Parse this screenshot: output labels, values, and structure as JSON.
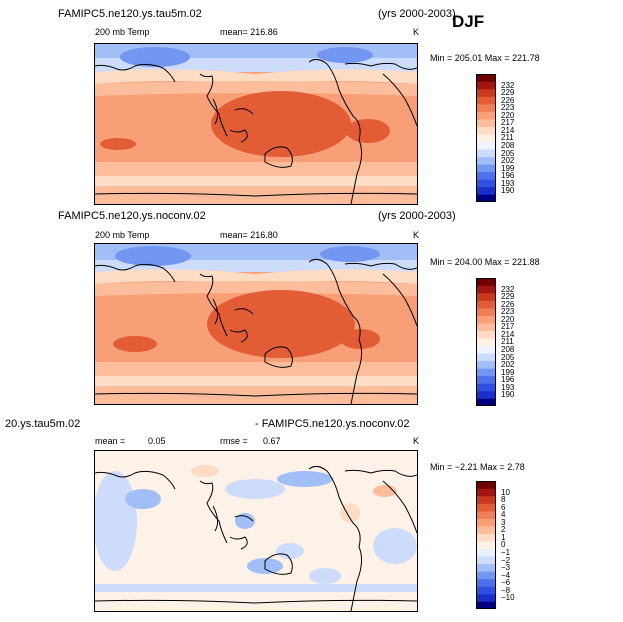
{
  "header": {
    "djf_label": "DJF"
  },
  "palette_main": [
    "#000080",
    "#1a2fc8",
    "#2f50e0",
    "#4f70ea",
    "#7396f0",
    "#a2bef7",
    "#cddcfb",
    "#eef3fd",
    "#fdf0e4",
    "#fddcc6",
    "#fbbd9c",
    "#f89f78",
    "#f07f56",
    "#e25c36",
    "#c93a1e",
    "#a31510",
    "#6e0000"
  ],
  "palette_diff": [
    "#000080",
    "#1a2fc8",
    "#2f50e0",
    "#4f70ea",
    "#7396f0",
    "#a2bef7",
    "#cddcfb",
    "#e8effc",
    "#fdf2e8",
    "#fddcc6",
    "#fbbd9c",
    "#f89f78",
    "#f07f56",
    "#e25c36",
    "#c93a1e",
    "#a31510",
    "#6e0000"
  ],
  "panels": [
    {
      "title_left": "FAMIPC5.ne120.ys.tau5m.02",
      "title_right": "(yrs 2000-2003)",
      "var_label": "200 mb Temp",
      "mean_text": "mean= 216.86",
      "units": "K",
      "stats_text": "Min = 205.01 Max = 221.78",
      "colorbar_ticks": [
        "232",
        "229",
        "226",
        "223",
        "220",
        "217",
        "214",
        "211",
        "208",
        "205",
        "202",
        "199",
        "196",
        "193",
        "190"
      ]
    },
    {
      "title_left": "FAMIPC5.ne120.ys.noconv.02",
      "title_right": "(yrs 2000-2003)",
      "var_label": "200 mb Temp",
      "mean_text": "mean= 216.80",
      "units": "K",
      "stats_text": "Min = 204.00 Max = 221.88",
      "colorbar_ticks": [
        "232",
        "229",
        "226",
        "223",
        "220",
        "217",
        "214",
        "211",
        "208",
        "205",
        "202",
        "199",
        "196",
        "193",
        "190"
      ]
    },
    {
      "title_left": "20.ys.tau5m.02",
      "title_right": "- FAMIPC5.ne120.ys.noconv.02",
      "mean_label": "mean =",
      "mean_value": "0.05",
      "rmse_label": "rmse =",
      "rmse_value": "0.67",
      "units": "K",
      "stats_text": "Min = −2.21 Max = 2.78",
      "colorbar_ticks": [
        "10",
        "8",
        "6",
        "4",
        "3",
        "2",
        "1",
        "0",
        "−1",
        "−2",
        "−3",
        "−4",
        "−6",
        "−8",
        "−10"
      ]
    }
  ],
  "chart_data": [
    {
      "type": "heatmap",
      "title": "FAMIPC5.ne120.ys.tau5m.02",
      "variable": "200 mb Temp",
      "units": "K",
      "mean": 216.86,
      "min": 205.01,
      "max": 221.78,
      "levels": [
        190,
        193,
        196,
        199,
        202,
        205,
        208,
        211,
        214,
        217,
        220,
        223,
        226,
        229,
        232
      ]
    },
    {
      "type": "heatmap",
      "title": "FAMIPC5.ne120.ys.noconv.02",
      "variable": "200 mb Temp",
      "units": "K",
      "mean": 216.8,
      "min": 204.0,
      "max": 221.88,
      "levels": [
        190,
        193,
        196,
        199,
        202,
        205,
        208,
        211,
        214,
        217,
        220,
        223,
        226,
        229,
        232
      ]
    },
    {
      "type": "heatmap",
      "title": "20.ys.tau5m.02 - FAMIPC5.ne120.ys.noconv.02",
      "units": "K",
      "mean": 0.05,
      "rmse": 0.67,
      "min": -2.21,
      "max": 2.78,
      "levels": [
        -10,
        -8,
        -6,
        -4,
        -3,
        -2,
        -1,
        0,
        1,
        2,
        3,
        4,
        6,
        8,
        10
      ]
    }
  ]
}
